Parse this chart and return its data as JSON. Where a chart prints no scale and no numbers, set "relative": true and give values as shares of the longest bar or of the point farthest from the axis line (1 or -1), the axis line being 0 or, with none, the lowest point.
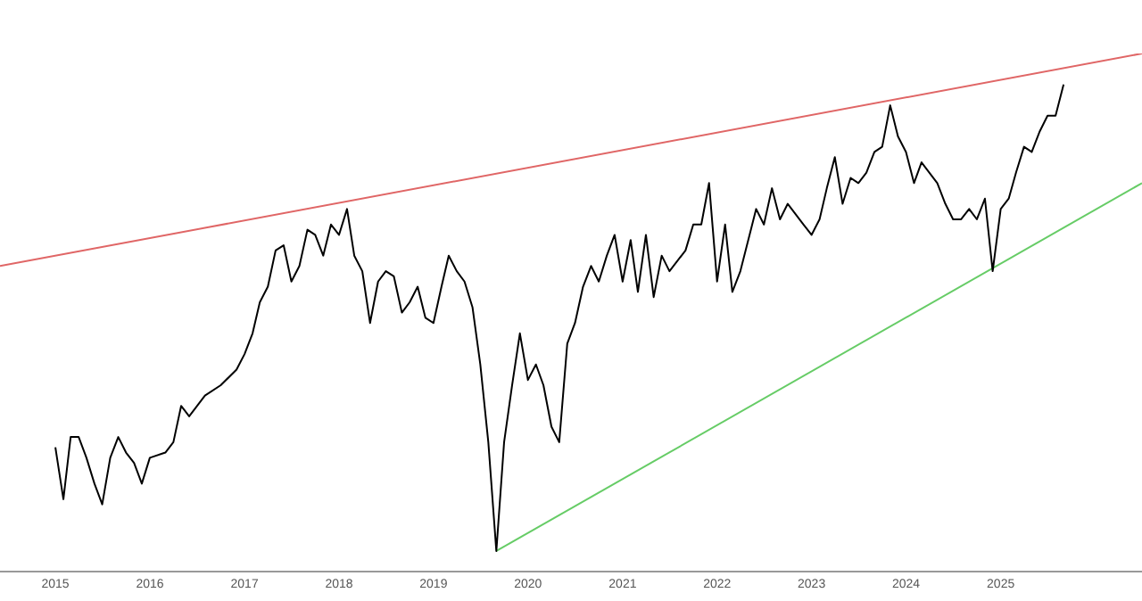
{
  "chart_data": {
    "type": "line",
    "relative": true,
    "grid": false,
    "legend": false,
    "xlim": [
      "2014-06",
      "2026-07"
    ],
    "xticks": [
      {
        "value": "2015-01",
        "label": "2015"
      },
      {
        "value": "2016-01",
        "label": "2016"
      },
      {
        "value": "2017-01",
        "label": "2017"
      },
      {
        "value": "2018-01",
        "label": "2018"
      },
      {
        "value": "2019-01",
        "label": "2019"
      },
      {
        "value": "2020-01",
        "label": "2020"
      },
      {
        "value": "2021-01",
        "label": "2021"
      },
      {
        "value": "2022-01",
        "label": "2022"
      },
      {
        "value": "2023-01",
        "label": "2023"
      },
      {
        "value": "2024-01",
        "label": "2024"
      },
      {
        "value": "2025-01",
        "label": "2025"
      }
    ],
    "series": [
      {
        "color": "#000000",
        "x": [
          "2015-01",
          "2015-02",
          "2015-03",
          "2015-04",
          "2015-05",
          "2015-06",
          "2015-07",
          "2015-08",
          "2015-09",
          "2015-10",
          "2015-11",
          "2015-12",
          "2016-01",
          "2016-03",
          "2016-04",
          "2016-05",
          "2016-06",
          "2016-08",
          "2016-10",
          "2016-12",
          "2017-01",
          "2017-02",
          "2017-03",
          "2017-04",
          "2017-05",
          "2017-06",
          "2017-07",
          "2017-08",
          "2017-09",
          "2017-10",
          "2017-11",
          "2017-12",
          "2018-01",
          "2018-02",
          "2018-03",
          "2018-04",
          "2018-05",
          "2018-06",
          "2018-07",
          "2018-08",
          "2018-09",
          "2018-10",
          "2018-11",
          "2018-12",
          "2019-01",
          "2019-02",
          "2019-03",
          "2019-04",
          "2019-05",
          "2019-06",
          "2019-07",
          "2019-08",
          "2019-09",
          "2019-10",
          "2019-11",
          "2019-12",
          "2020-01",
          "2020-02",
          "2020-03",
          "2020-04",
          "2020-05",
          "2020-06",
          "2020-07",
          "2020-08",
          "2020-09",
          "2020-10",
          "2020-11",
          "2020-12",
          "2021-01",
          "2021-02",
          "2021-03",
          "2021-04",
          "2021-05",
          "2021-06",
          "2021-07",
          "2021-09",
          "2021-10",
          "2021-11",
          "2021-12",
          "2022-01",
          "2022-02",
          "2022-03",
          "2022-04",
          "2022-06",
          "2022-07",
          "2022-08",
          "2022-09",
          "2022-10",
          "2022-12",
          "2023-01",
          "2023-02",
          "2023-03",
          "2023-04",
          "2023-05",
          "2023-06",
          "2023-07",
          "2023-08",
          "2023-09",
          "2023-10",
          "2023-11",
          "2023-12",
          "2024-01",
          "2024-02",
          "2024-03",
          "2024-05",
          "2024-06",
          "2024-07",
          "2024-08",
          "2024-09",
          "2024-10",
          "2024-11",
          "2024-12",
          "2025-01",
          "2025-02",
          "2025-03",
          "2025-04",
          "2025-05",
          "2025-06",
          "2025-07",
          "2025-08",
          "2025-09"
        ],
        "values": [
          0.24,
          0.14,
          0.26,
          0.26,
          0.22,
          0.17,
          0.13,
          0.22,
          0.26,
          0.23,
          0.21,
          0.17,
          0.22,
          0.23,
          0.25,
          0.32,
          0.3,
          0.34,
          0.36,
          0.39,
          0.42,
          0.46,
          0.52,
          0.55,
          0.62,
          0.63,
          0.56,
          0.59,
          0.66,
          0.65,
          0.61,
          0.67,
          0.65,
          0.7,
          0.61,
          0.58,
          0.48,
          0.56,
          0.58,
          0.57,
          0.5,
          0.52,
          0.55,
          0.49,
          0.48,
          0.55,
          0.61,
          0.58,
          0.56,
          0.51,
          0.4,
          0.25,
          0.04,
          0.25,
          0.36,
          0.46,
          0.37,
          0.4,
          0.36,
          0.28,
          0.25,
          0.44,
          0.48,
          0.55,
          0.59,
          0.56,
          0.61,
          0.65,
          0.56,
          0.64,
          0.54,
          0.65,
          0.53,
          0.61,
          0.58,
          0.62,
          0.67,
          0.67,
          0.75,
          0.56,
          0.67,
          0.54,
          0.58,
          0.7,
          0.67,
          0.74,
          0.68,
          0.71,
          0.67,
          0.65,
          0.68,
          0.74,
          0.8,
          0.71,
          0.76,
          0.75,
          0.77,
          0.81,
          0.82,
          0.9,
          0.84,
          0.81,
          0.75,
          0.79,
          0.75,
          0.71,
          0.68,
          0.68,
          0.7,
          0.68,
          0.72,
          0.58,
          0.7,
          0.72,
          0.77,
          0.82,
          0.81,
          0.85,
          0.88,
          0.88,
          0.94
        ]
      },
      {
        "color": "#e06666",
        "x": [
          "2014-06",
          "2026-07"
        ],
        "values": [
          0.59,
          1
        ]
      },
      {
        "color": "#66cc66",
        "x": [
          "2019-09",
          "2026-07"
        ],
        "values": [
          0.04,
          0.75
        ]
      }
    ]
  }
}
